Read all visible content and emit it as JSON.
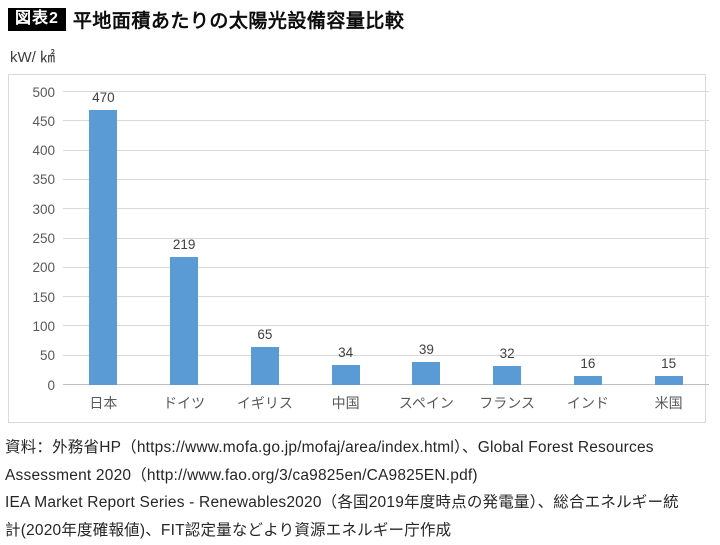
{
  "header": {
    "badge": "図表2",
    "title": "平地面積あたりの太陽光設備容量比較"
  },
  "chart_data": {
    "type": "bar",
    "title": "平地面積あたりの太陽光設備容量比較",
    "unit_label": "kW/ ㎢",
    "categories": [
      "日本",
      "ドイツ",
      "イギリス",
      "中国",
      "スペイン",
      "フランス",
      "インド",
      "米国"
    ],
    "values": [
      470,
      219,
      65,
      34,
      39,
      32,
      16,
      15
    ],
    "xlabel": "",
    "ylabel": "kW/ ㎢",
    "ylim": [
      0,
      500
    ],
    "ytick_step": 50,
    "grid": true,
    "legend": false,
    "data_labels": true,
    "bar_color": "#5b9bd5",
    "gridline_color": "#d9d9d9",
    "axis_line_color": "#bfbfbf",
    "tick_label_color": "#595959",
    "data_label_color": "#404040"
  },
  "source_note": {
    "lines": [
      "資料：外務省HP（https://www.mofa.go.jp/mofaj/area/index.html）、Global Forest Resources",
      "Assessment 2020（http://www.fao.org/3/ca9825en/CA9825EN.pdf)",
      "IEA Market Report Series - Renewables2020（各国2019年度時点の発電量）、総合エネルギー統",
      "計(2020年度確報値)、FIT認定量などより資源エネルギー庁作成"
    ]
  }
}
